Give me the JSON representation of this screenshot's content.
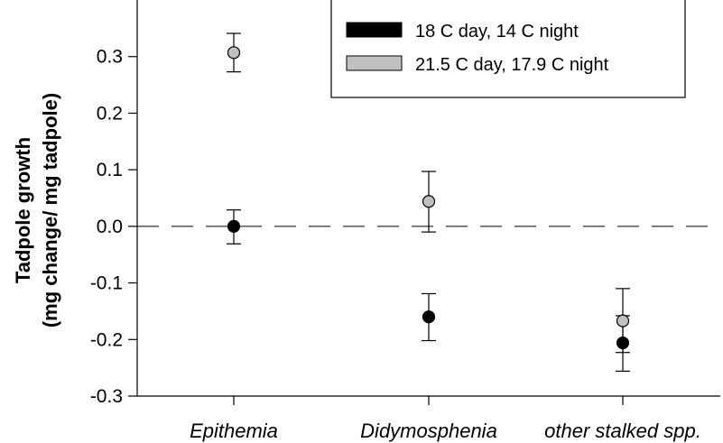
{
  "chart_data": {
    "type": "scatter",
    "title": "",
    "ylabel_line1": "Tadpole growth",
    "ylabel_line2": "(mg change/ mg tadpole)",
    "xlabel": "",
    "categories": [
      "Epithemia",
      "Didymosphenia",
      "other stalked spp."
    ],
    "ylim": [
      -0.3,
      0.4
    ],
    "yticks": [
      "-0.3",
      "-0.2",
      "-0.1",
      "0.0",
      "0.1",
      "0.2",
      "0.3"
    ],
    "reference_line": 0.0,
    "series": [
      {
        "name": "18 C day, 14 C night",
        "color": "#000000",
        "values": [
          0.0,
          -0.16,
          -0.206
        ],
        "error_low": [
          -0.031,
          -0.202,
          -0.256
        ],
        "error_high": [
          0.029,
          -0.119,
          -0.158
        ]
      },
      {
        "name": "21.5 C day, 17.9 C night",
        "color": "#c0c0c0",
        "values": [
          0.307,
          0.044,
          -0.167
        ],
        "error_low": [
          0.273,
          -0.01,
          -0.223
        ],
        "error_high": [
          0.341,
          0.097,
          -0.11
        ]
      }
    ],
    "legend_position": "top-right",
    "grid": false
  }
}
